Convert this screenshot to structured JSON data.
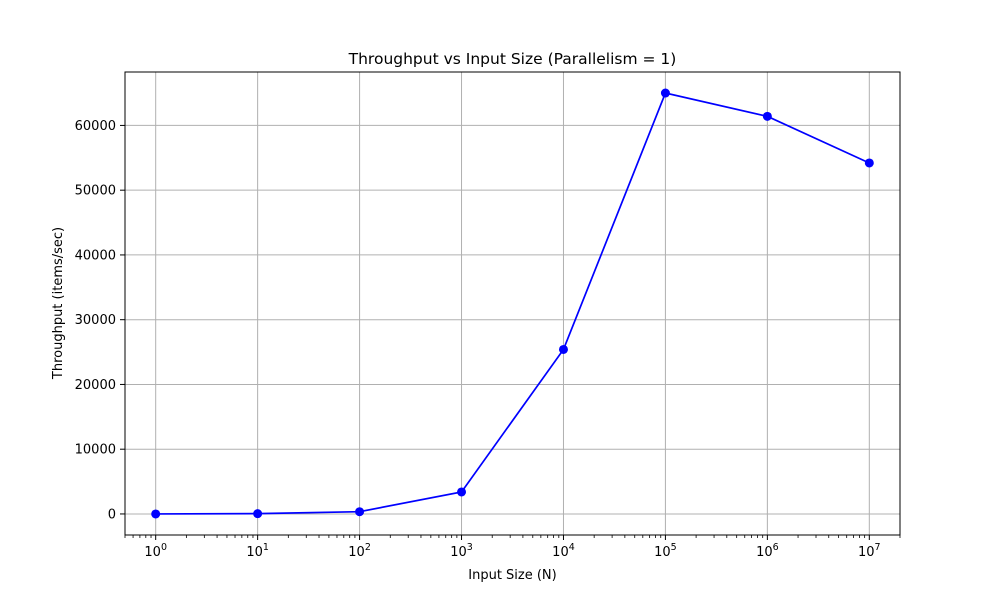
{
  "chart_data": {
    "type": "line",
    "title": "Throughput vs Input Size (Parallelism = 1)",
    "xlabel": "Input Size (N)",
    "ylabel": "Throughput (items/sec)",
    "x_scale": "log",
    "x_tick_base": "10",
    "x_tick_exponents": [
      "0",
      "1",
      "2",
      "3",
      "4",
      "5",
      "6",
      "7"
    ],
    "y_ticks": [
      "0",
      "10000",
      "20000",
      "30000",
      "40000",
      "50000",
      "60000"
    ],
    "xlim": [
      0.5,
      20000000
    ],
    "ylim": [
      -3250,
      68250
    ],
    "grid": true,
    "series": [
      {
        "color": "#0000ff",
        "marker": "circle",
        "x": [
          1,
          10,
          100,
          1000,
          10000,
          100000,
          1000000,
          10000000
        ],
        "y": [
          0,
          50,
          350,
          3400,
          25400,
          65000,
          61400,
          54200
        ]
      }
    ]
  }
}
